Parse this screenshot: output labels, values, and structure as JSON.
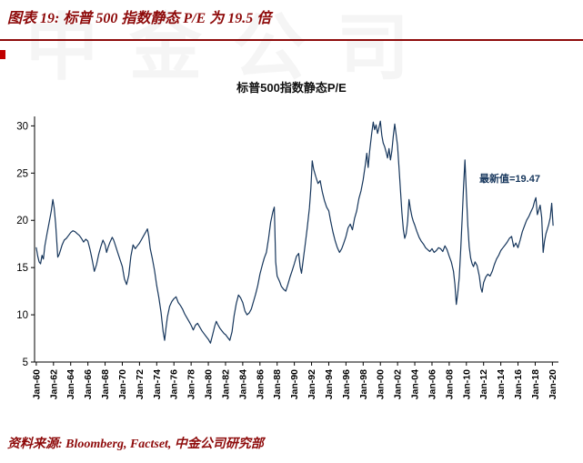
{
  "header": {
    "title": "图表 19:  标普 500 指数静态 P/E 为 19.5 倍"
  },
  "watermark": {
    "text": "中金公司"
  },
  "footer": {
    "source": "资料来源:  Bloomberg, Factset, 中金公司研究部"
  },
  "colors": {
    "accent": "#8e0b0b",
    "line": "#16365c",
    "axis": "#000000"
  },
  "chart_data": {
    "type": "line",
    "title": "标普500指数静态P/E",
    "xlabel": "",
    "ylabel": "",
    "grid": false,
    "legend": "none",
    "x_range": [
      1959.8,
      2020.7
    ],
    "y_range": [
      5,
      31
    ],
    "y_ticks": [
      5,
      10,
      15,
      20,
      25,
      30
    ],
    "x_tick_labels": [
      "Jan-60",
      "Jan-62",
      "Jan-64",
      "Jan-66",
      "Jan-68",
      "Jan-70",
      "Jan-72",
      "Jan-74",
      "Jan-76",
      "Jan-78",
      "Jan-80",
      "Jan-82",
      "Jan-84",
      "Jan-86",
      "Jan-88",
      "Jan-90",
      "Jan-92",
      "Jan-94",
      "Jan-96",
      "Jan-98",
      "Jan-00",
      "Jan-02",
      "Jan-04",
      "Jan-06",
      "Jan-08",
      "Jan-10",
      "Jan-12",
      "Jan-14",
      "Jan-16",
      "Jan-18",
      "Jan-20"
    ],
    "x_tick_years": [
      1960,
      1962,
      1964,
      1966,
      1968,
      1970,
      1972,
      1974,
      1976,
      1978,
      1980,
      1982,
      1984,
      1986,
      1988,
      1990,
      1992,
      1994,
      1996,
      1998,
      2000,
      2002,
      2004,
      2006,
      2008,
      2010,
      2012,
      2014,
      2016,
      2018,
      2020
    ],
    "annotation": {
      "text": "最新值=19.47",
      "x": 2011.5,
      "y": 24.6
    },
    "latest_value": 19.47,
    "series": [
      {
        "name": "标普500指数静态P/E",
        "color": "#16365c",
        "points": [
          [
            1960.0,
            17.1
          ],
          [
            1960.17,
            16.2
          ],
          [
            1960.33,
            15.6
          ],
          [
            1960.5,
            15.4
          ],
          [
            1960.67,
            16.3
          ],
          [
            1960.83,
            15.9
          ],
          [
            1961.0,
            17.3
          ],
          [
            1961.25,
            18.6
          ],
          [
            1961.5,
            19.8
          ],
          [
            1961.75,
            21.0
          ],
          [
            1961.92,
            22.2
          ],
          [
            1962.08,
            21.3
          ],
          [
            1962.25,
            19.6
          ],
          [
            1962.42,
            17.2
          ],
          [
            1962.5,
            16.1
          ],
          [
            1962.67,
            16.4
          ],
          [
            1962.83,
            16.9
          ],
          [
            1963.0,
            17.4
          ],
          [
            1963.25,
            17.9
          ],
          [
            1963.5,
            18.1
          ],
          [
            1963.75,
            18.4
          ],
          [
            1964.0,
            18.7
          ],
          [
            1964.25,
            18.9
          ],
          [
            1964.5,
            18.8
          ],
          [
            1964.75,
            18.6
          ],
          [
            1965.0,
            18.4
          ],
          [
            1965.25,
            18.1
          ],
          [
            1965.5,
            17.7
          ],
          [
            1965.75,
            18.0
          ],
          [
            1966.0,
            17.8
          ],
          [
            1966.25,
            16.9
          ],
          [
            1966.5,
            15.8
          ],
          [
            1966.75,
            14.6
          ],
          [
            1967.0,
            15.3
          ],
          [
            1967.25,
            16.4
          ],
          [
            1967.5,
            17.2
          ],
          [
            1967.75,
            17.9
          ],
          [
            1968.0,
            17.4
          ],
          [
            1968.17,
            16.6
          ],
          [
            1968.33,
            17.1
          ],
          [
            1968.58,
            17.7
          ],
          [
            1968.83,
            18.2
          ],
          [
            1969.0,
            17.9
          ],
          [
            1969.25,
            17.2
          ],
          [
            1969.5,
            16.5
          ],
          [
            1969.75,
            15.8
          ],
          [
            1970.0,
            15.1
          ],
          [
            1970.25,
            13.8
          ],
          [
            1970.5,
            13.2
          ],
          [
            1970.75,
            14.2
          ],
          [
            1971.0,
            16.2
          ],
          [
            1971.25,
            17.4
          ],
          [
            1971.5,
            17.0
          ],
          [
            1971.75,
            17.3
          ],
          [
            1972.0,
            17.6
          ],
          [
            1972.25,
            18.0
          ],
          [
            1972.5,
            18.4
          ],
          [
            1972.75,
            18.8
          ],
          [
            1972.92,
            19.1
          ],
          [
            1973.08,
            18.3
          ],
          [
            1973.25,
            17.0
          ],
          [
            1973.5,
            15.9
          ],
          [
            1973.75,
            14.7
          ],
          [
            1974.0,
            13.1
          ],
          [
            1974.25,
            11.8
          ],
          [
            1974.5,
            10.3
          ],
          [
            1974.75,
            8.2
          ],
          [
            1974.92,
            7.3
          ],
          [
            1975.08,
            8.6
          ],
          [
            1975.25,
            9.8
          ],
          [
            1975.5,
            10.9
          ],
          [
            1975.75,
            11.4
          ],
          [
            1976.0,
            11.7
          ],
          [
            1976.25,
            11.9
          ],
          [
            1976.5,
            11.3
          ],
          [
            1976.75,
            11.0
          ],
          [
            1977.0,
            10.6
          ],
          [
            1977.25,
            10.1
          ],
          [
            1977.5,
            9.7
          ],
          [
            1977.75,
            9.3
          ],
          [
            1978.0,
            8.9
          ],
          [
            1978.25,
            8.4
          ],
          [
            1978.5,
            8.9
          ],
          [
            1978.75,
            9.1
          ],
          [
            1979.0,
            8.7
          ],
          [
            1979.25,
            8.3
          ],
          [
            1979.5,
            8.0
          ],
          [
            1979.75,
            7.7
          ],
          [
            1980.0,
            7.4
          ],
          [
            1980.25,
            7.0
          ],
          [
            1980.5,
            7.9
          ],
          [
            1980.75,
            8.8
          ],
          [
            1980.92,
            9.3
          ],
          [
            1981.08,
            9.0
          ],
          [
            1981.33,
            8.6
          ],
          [
            1981.58,
            8.3
          ],
          [
            1981.83,
            8.0
          ],
          [
            1982.0,
            7.9
          ],
          [
            1982.25,
            7.6
          ],
          [
            1982.5,
            7.3
          ],
          [
            1982.75,
            8.2
          ],
          [
            1983.0,
            9.9
          ],
          [
            1983.25,
            11.2
          ],
          [
            1983.5,
            12.1
          ],
          [
            1983.75,
            11.8
          ],
          [
            1984.0,
            11.3
          ],
          [
            1984.25,
            10.4
          ],
          [
            1984.5,
            10.0
          ],
          [
            1984.75,
            10.2
          ],
          [
            1985.0,
            10.6
          ],
          [
            1985.25,
            11.4
          ],
          [
            1985.5,
            12.2
          ],
          [
            1985.75,
            13.1
          ],
          [
            1986.0,
            14.3
          ],
          [
            1986.25,
            15.2
          ],
          [
            1986.5,
            16.0
          ],
          [
            1986.75,
            16.6
          ],
          [
            1987.0,
            18.1
          ],
          [
            1987.25,
            19.8
          ],
          [
            1987.5,
            20.9
          ],
          [
            1987.67,
            21.4
          ],
          [
            1987.83,
            15.6
          ],
          [
            1988.0,
            14.1
          ],
          [
            1988.25,
            13.6
          ],
          [
            1988.5,
            13.0
          ],
          [
            1988.75,
            12.7
          ],
          [
            1989.0,
            12.5
          ],
          [
            1989.25,
            13.2
          ],
          [
            1989.5,
            14.0
          ],
          [
            1989.75,
            14.7
          ],
          [
            1990.0,
            15.4
          ],
          [
            1990.25,
            16.2
          ],
          [
            1990.5,
            16.5
          ],
          [
            1990.67,
            15.1
          ],
          [
            1990.83,
            14.4
          ],
          [
            1991.0,
            15.6
          ],
          [
            1991.25,
            17.4
          ],
          [
            1991.5,
            19.2
          ],
          [
            1991.75,
            21.3
          ],
          [
            1991.92,
            23.4
          ],
          [
            1992.08,
            26.3
          ],
          [
            1992.25,
            25.4
          ],
          [
            1992.5,
            24.6
          ],
          [
            1992.75,
            23.9
          ],
          [
            1993.0,
            24.2
          ],
          [
            1993.25,
            23.0
          ],
          [
            1993.5,
            22.1
          ],
          [
            1993.75,
            21.4
          ],
          [
            1994.0,
            21.0
          ],
          [
            1994.25,
            19.8
          ],
          [
            1994.5,
            18.7
          ],
          [
            1994.75,
            17.8
          ],
          [
            1995.0,
            17.1
          ],
          [
            1995.25,
            16.6
          ],
          [
            1995.5,
            17.0
          ],
          [
            1995.75,
            17.6
          ],
          [
            1996.0,
            18.3
          ],
          [
            1996.25,
            19.2
          ],
          [
            1996.5,
            19.6
          ],
          [
            1996.75,
            19.0
          ],
          [
            1997.0,
            20.2
          ],
          [
            1997.25,
            21.0
          ],
          [
            1997.5,
            22.3
          ],
          [
            1997.75,
            23.1
          ],
          [
            1998.0,
            24.3
          ],
          [
            1998.25,
            25.9
          ],
          [
            1998.42,
            27.1
          ],
          [
            1998.58,
            25.6
          ],
          [
            1998.75,
            27.3
          ],
          [
            1999.0,
            29.3
          ],
          [
            1999.17,
            30.4
          ],
          [
            1999.33,
            29.6
          ],
          [
            1999.5,
            30.1
          ],
          [
            1999.67,
            29.2
          ],
          [
            1999.83,
            29.8
          ],
          [
            2000.0,
            30.5
          ],
          [
            2000.17,
            29.0
          ],
          [
            2000.33,
            28.2
          ],
          [
            2000.5,
            27.8
          ],
          [
            2000.67,
            27.2
          ],
          [
            2000.83,
            26.6
          ],
          [
            2001.0,
            27.6
          ],
          [
            2001.17,
            26.4
          ],
          [
            2001.33,
            27.3
          ],
          [
            2001.5,
            28.9
          ],
          [
            2001.67,
            30.2
          ],
          [
            2001.83,
            29.1
          ],
          [
            2002.0,
            27.9
          ],
          [
            2002.17,
            25.6
          ],
          [
            2002.33,
            23.2
          ],
          [
            2002.5,
            20.8
          ],
          [
            2002.67,
            19.0
          ],
          [
            2002.83,
            18.1
          ],
          [
            2003.0,
            18.6
          ],
          [
            2003.17,
            19.9
          ],
          [
            2003.33,
            22.2
          ],
          [
            2003.5,
            21.2
          ],
          [
            2003.67,
            20.4
          ],
          [
            2003.83,
            19.9
          ],
          [
            2004.0,
            19.5
          ],
          [
            2004.25,
            18.8
          ],
          [
            2004.5,
            18.2
          ],
          [
            2004.75,
            17.8
          ],
          [
            2005.0,
            17.5
          ],
          [
            2005.25,
            17.1
          ],
          [
            2005.5,
            16.9
          ],
          [
            2005.75,
            16.7
          ],
          [
            2006.0,
            17.0
          ],
          [
            2006.25,
            16.6
          ],
          [
            2006.5,
            16.8
          ],
          [
            2006.75,
            17.1
          ],
          [
            2007.0,
            17.0
          ],
          [
            2007.25,
            16.7
          ],
          [
            2007.5,
            17.3
          ],
          [
            2007.75,
            16.9
          ],
          [
            2008.0,
            16.2
          ],
          [
            2008.25,
            15.6
          ],
          [
            2008.5,
            14.6
          ],
          [
            2008.67,
            13.2
          ],
          [
            2008.83,
            11.1
          ],
          [
            2009.0,
            12.3
          ],
          [
            2009.17,
            13.9
          ],
          [
            2009.33,
            16.8
          ],
          [
            2009.5,
            20.1
          ],
          [
            2009.67,
            23.6
          ],
          [
            2009.83,
            26.4
          ],
          [
            2010.0,
            22.8
          ],
          [
            2010.17,
            19.4
          ],
          [
            2010.33,
            17.2
          ],
          [
            2010.5,
            16.0
          ],
          [
            2010.67,
            15.4
          ],
          [
            2010.83,
            15.1
          ],
          [
            2011.0,
            15.6
          ],
          [
            2011.25,
            15.2
          ],
          [
            2011.5,
            14.1
          ],
          [
            2011.67,
            12.9
          ],
          [
            2011.83,
            12.4
          ],
          [
            2012.0,
            13.4
          ],
          [
            2012.25,
            14.0
          ],
          [
            2012.5,
            14.3
          ],
          [
            2012.75,
            14.1
          ],
          [
            2013.0,
            14.6
          ],
          [
            2013.25,
            15.3
          ],
          [
            2013.5,
            15.9
          ],
          [
            2013.75,
            16.3
          ],
          [
            2014.0,
            16.8
          ],
          [
            2014.25,
            17.1
          ],
          [
            2014.5,
            17.4
          ],
          [
            2014.75,
            17.7
          ],
          [
            2015.0,
            18.1
          ],
          [
            2015.25,
            18.3
          ],
          [
            2015.5,
            17.2
          ],
          [
            2015.75,
            17.6
          ],
          [
            2016.0,
            17.1
          ],
          [
            2016.25,
            17.9
          ],
          [
            2016.5,
            18.8
          ],
          [
            2016.75,
            19.4
          ],
          [
            2017.0,
            20.0
          ],
          [
            2017.25,
            20.4
          ],
          [
            2017.5,
            20.9
          ],
          [
            2017.75,
            21.4
          ],
          [
            2017.92,
            22.0
          ],
          [
            2018.08,
            22.4
          ],
          [
            2018.25,
            20.6
          ],
          [
            2018.42,
            21.1
          ],
          [
            2018.58,
            21.6
          ],
          [
            2018.75,
            20.3
          ],
          [
            2018.92,
            16.6
          ],
          [
            2019.08,
            17.8
          ],
          [
            2019.25,
            18.6
          ],
          [
            2019.42,
            19.1
          ],
          [
            2019.58,
            19.6
          ],
          [
            2019.75,
            20.3
          ],
          [
            2019.92,
            21.8
          ],
          [
            2020.08,
            19.47
          ]
        ]
      }
    ]
  }
}
